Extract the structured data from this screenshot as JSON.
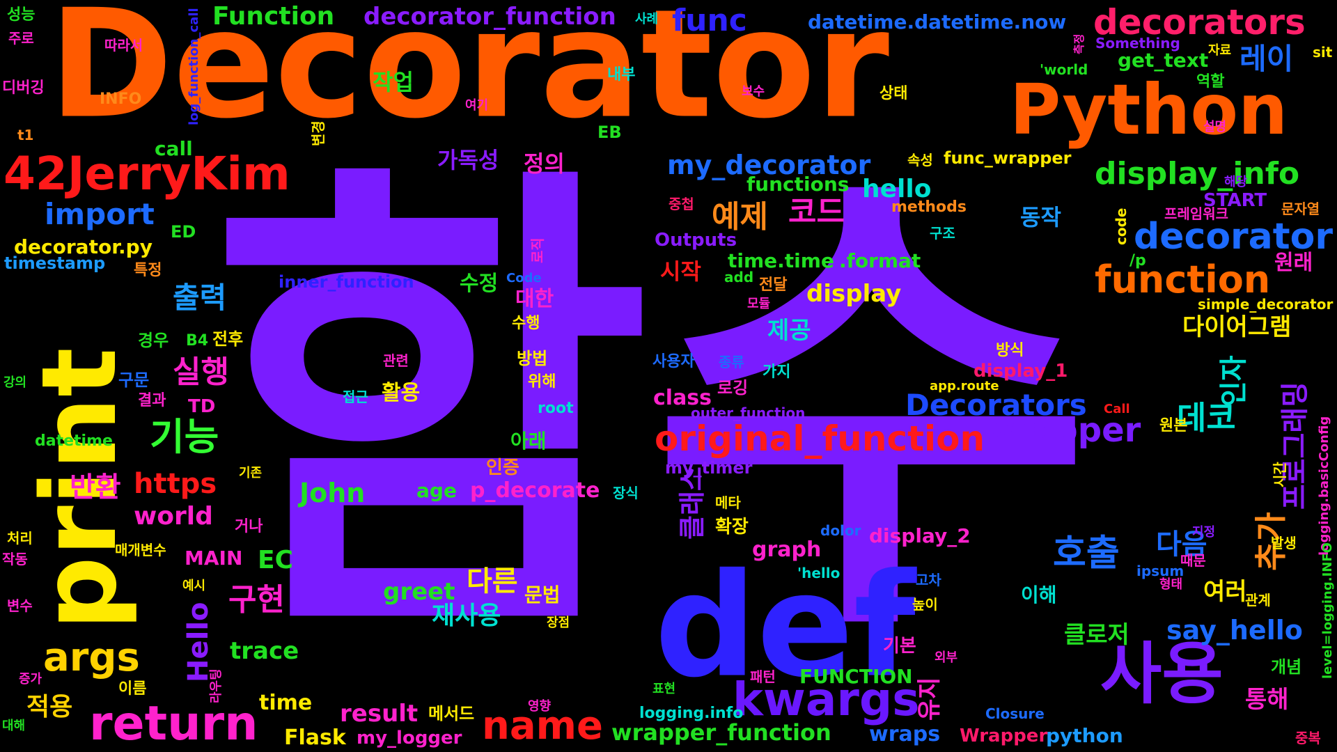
{
  "word_cloud": {
    "words": [
      {
        "text": "함수",
        "color": "#7a1cff"
      },
      {
        "text": "Decorator",
        "color": "#ff5a00"
      },
      {
        "text": "print",
        "color": "#ffea00"
      },
      {
        "text": "Python",
        "color": "#ff5a00"
      },
      {
        "text": "def",
        "color": "#2f22ff"
      },
      {
        "text": "42JerryKim",
        "color": "#ff1a1a"
      },
      {
        "text": "decorators",
        "color": "#ff1f6a"
      },
      {
        "text": "사용",
        "color": "#7a1cff"
      },
      {
        "text": "kwargs",
        "color": "#6a18ff"
      },
      {
        "text": "return",
        "color": "#ff22cc"
      },
      {
        "text": "name",
        "color": "#ff1a1a"
      },
      {
        "text": "args",
        "color": "#ffd200"
      },
      {
        "text": "original_function",
        "color": "#ff1a1a"
      },
      {
        "text": "decorator",
        "color": "#1d6bff"
      },
      {
        "text": "function",
        "color": "#ff6a00"
      },
      {
        "text": "display_info",
        "color": "#22e022"
      },
      {
        "text": "my_decorator",
        "color": "#1d6bff"
      },
      {
        "text": "wrapper",
        "color": "#7a1cff"
      },
      {
        "text": "Decorators",
        "color": "#1d4bff"
      },
      {
        "text": "코드",
        "color": "#ff22cc"
      },
      {
        "text": "예제",
        "color": "#ff8a1a"
      },
      {
        "text": "호출",
        "color": "#1d6bff"
      },
      {
        "text": "기능",
        "color": "#33ff33"
      },
      {
        "text": "실행",
        "color": "#ff22cc"
      },
      {
        "text": "출력",
        "color": "#1d9bff"
      },
      {
        "text": "func",
        "color": "#2f22ff"
      },
      {
        "text": "import",
        "color": "#1d6bff"
      },
      {
        "text": "Function",
        "color": "#22e022"
      },
      {
        "text": "decorator_function",
        "color": "#8a1cff"
      },
      {
        "text": "레이",
        "color": "#1d6bff"
      },
      {
        "text": "datetime.datetime.now",
        "color": "#1d6bff"
      },
      {
        "text": "데코",
        "color": "#00e0d0"
      },
      {
        "text": "추가",
        "color": "#ff8a1a"
      },
      {
        "text": "다음",
        "color": "#1d6bff"
      },
      {
        "text": "say_hello",
        "color": "#1d6bff"
      },
      {
        "text": "John",
        "color": "#22e022"
      },
      {
        "text": "https",
        "color": "#ff1a1a"
      },
      {
        "text": "hello",
        "color": "#00e0d0"
      },
      {
        "text": "world",
        "color": "#ff22cc"
      },
      {
        "text": "decorator.py",
        "color": "#ffea00"
      },
      {
        "text": "구현",
        "color": "#ff22cc"
      },
      {
        "text": "반환",
        "color": "#ff22cc"
      },
      {
        "text": "적용",
        "color": "#ffd200"
      },
      {
        "text": "greet",
        "color": "#22e022"
      },
      {
        "text": "재사용",
        "color": "#00e0d0"
      },
      {
        "text": "다른",
        "color": "#ffea00"
      },
      {
        "text": "wrapper_function",
        "color": "#22e022"
      },
      {
        "text": "result",
        "color": "#ff22cc"
      },
      {
        "text": "trace",
        "color": "#22e022"
      },
      {
        "text": "Flask",
        "color": "#ffea00"
      },
      {
        "text": "wraps",
        "color": "#1d6bff"
      },
      {
        "text": "python",
        "color": "#1d9bff"
      },
      {
        "text": "Wrapper",
        "color": "#ff1a6a"
      },
      {
        "text": "EC",
        "color": "#22e022"
      },
      {
        "text": "time",
        "color": "#ffea00"
      },
      {
        "text": "display",
        "color": "#ffea00"
      },
      {
        "text": "다이어그램",
        "color": "#ffea00"
      },
      {
        "text": "클로저",
        "color": "#22e022"
      },
      {
        "text": "여러",
        "color": "#ffea00"
      },
      {
        "text": "인자",
        "color": "#00e0d0"
      },
      {
        "text": "프로그래밍",
        "color": "#8a1cff"
      },
      {
        "text": "클래스",
        "color": "#8a1cff"
      },
      {
        "text": "유지",
        "color": "#ff22cc"
      },
      {
        "text": "Hello",
        "color": "#8a1cff"
      },
      {
        "text": "통해",
        "color": "#ff22cc"
      },
      {
        "text": "원래",
        "color": "#ff22cc"
      },
      {
        "text": "동작",
        "color": "#1d9bff"
      },
      {
        "text": "시작",
        "color": "#ff1a1a"
      },
      {
        "text": "수정",
        "color": "#22e022"
      },
      {
        "text": "대한",
        "color": "#ff22cc"
      },
      {
        "text": "제공",
        "color": "#00e0d0"
      },
      {
        "text": "정의",
        "color": "#ff22cc"
      },
      {
        "text": "가독성",
        "color": "#8a1cff"
      },
      {
        "text": "작업",
        "color": "#22e022"
      },
      {
        "text": "get_text",
        "color": "#22e022"
      },
      {
        "text": "functions",
        "color": "#22e022"
      },
      {
        "text": "time.time",
        "color": "#22e022"
      },
      {
        "text": ".format",
        "color": "#22e022"
      },
      {
        "text": "p_decorate",
        "color": "#ff22cc"
      },
      {
        "text": "age",
        "color": "#22e022"
      },
      {
        "text": "class",
        "color": "#ff22cc"
      },
      {
        "text": "graph",
        "color": "#ff22cc"
      },
      {
        "text": "display_2",
        "color": "#ff22cc"
      },
      {
        "text": "FUNCTION",
        "color": "#22e022"
      },
      {
        "text": "MAIN",
        "color": "#ff22cc"
      },
      {
        "text": "call",
        "color": "#22e022"
      },
      {
        "text": "START",
        "color": "#8a1cff"
      },
      {
        "text": "display_1",
        "color": "#ff1a6a"
      },
      {
        "text": "Outputs",
        "color": "#8a1cff"
      },
      {
        "text": "inner_function",
        "color": "#2f22ff"
      },
      {
        "text": "timestamp",
        "color": "#1d9bff"
      },
      {
        "text": "datetime",
        "color": "#22e022"
      },
      {
        "text": "outer_function",
        "color": "#8a1cff"
      },
      {
        "text": "my_timer",
        "color": "#8a1cff"
      },
      {
        "text": "my_logger",
        "color": "#ff22cc"
      },
      {
        "text": "logging.info",
        "color": "#00e0d0"
      },
      {
        "text": "logging.basicConfig",
        "color": "#ff22cc"
      },
      {
        "text": "level=logging.INFO",
        "color": "#22e022"
      },
      {
        "text": "log_function_call",
        "color": "#2f22ff"
      },
      {
        "text": "simple_decorator",
        "color": "#ffea00"
      },
      {
        "text": "func_wrapper",
        "color": "#ffea00"
      },
      {
        "text": "methods",
        "color": "#ff8a1a"
      },
      {
        "text": "app.route",
        "color": "#ffea00"
      },
      {
        "text": "Closure",
        "color": "#1d6bff"
      },
      {
        "text": "Something",
        "color": "#8a1cff"
      },
      {
        "text": "'world",
        "color": "#22e022"
      },
      {
        "text": "'hello",
        "color": "#00e0d0"
      },
      {
        "text": "dolor",
        "color": "#1d6bff"
      },
      {
        "text": "ipsum",
        "color": "#1d6bff"
      },
      {
        "text": "Call",
        "color": "#ff1a1a"
      },
      {
        "text": "Code",
        "color": "#1d6bff"
      },
      {
        "text": "code",
        "color": "#ffea00"
      },
      {
        "text": "add",
        "color": "#22e022"
      },
      {
        "text": "/p",
        "color": "#22e022"
      },
      {
        "text": "sit",
        "color": "#ffea00"
      },
      {
        "text": "root",
        "color": "#00e0d0"
      },
      {
        "text": "INFO",
        "color": "#ff8a1a"
      },
      {
        "text": "ED",
        "color": "#22e022"
      },
      {
        "text": "EB",
        "color": "#22e022"
      },
      {
        "text": "TD",
        "color": "#ff22cc"
      },
      {
        "text": "B4",
        "color": "#22e022"
      },
      {
        "text": "t1",
        "color": "#ff8a1a"
      },
      {
        "text": "성능",
        "color": "#22e022"
      },
      {
        "text": "주로",
        "color": "#ff22cc"
      },
      {
        "text": "따라서",
        "color": "#ff22cc"
      },
      {
        "text": "디버깅",
        "color": "#ff22cc"
      },
      {
        "text": "여기",
        "color": "#ff22cc"
      },
      {
        "text": "내부",
        "color": "#00e0d0"
      },
      {
        "text": "사례",
        "color": "#00e0d0"
      },
      {
        "text": "보수",
        "color": "#ff22cc"
      },
      {
        "text": "상태",
        "color": "#ffea00"
      },
      {
        "text": "속성",
        "color": "#ffea00"
      },
      {
        "text": "구조",
        "color": "#00e0d0"
      },
      {
        "text": "자료",
        "color": "#ffea00"
      },
      {
        "text": "역할",
        "color": "#22e022"
      },
      {
        "text": "설명",
        "color": "#ff22cc"
      },
      {
        "text": "해당",
        "color": "#8a1cff"
      },
      {
        "text": "문자열",
        "color": "#ff8a1a"
      },
      {
        "text": "프레임워크",
        "color": "#ff22cc"
      },
      {
        "text": "중첩",
        "color": "#ff1a6a"
      },
      {
        "text": "모듈",
        "color": "#ff22cc"
      },
      {
        "text": "전달",
        "color": "#ff8a1a"
      },
      {
        "text": "방식",
        "color": "#ffea00"
      },
      {
        "text": "종류",
        "color": "#1d6bff"
      },
      {
        "text": "가지",
        "color": "#00e0d0"
      },
      {
        "text": "사용자",
        "color": "#1d6bff"
      },
      {
        "text": "로깅",
        "color": "#ff22cc"
      },
      {
        "text": "관련",
        "color": "#ff22cc"
      },
      {
        "text": "활용",
        "color": "#ffea00"
      },
      {
        "text": "접근",
        "color": "#00e0d0"
      },
      {
        "text": "방법",
        "color": "#ffea00"
      },
      {
        "text": "위해",
        "color": "#ffea00"
      },
      {
        "text": "수행",
        "color": "#ffea00"
      },
      {
        "text": "아래",
        "color": "#22e022"
      },
      {
        "text": "인증",
        "color": "#ff8a1a"
      },
      {
        "text": "장식",
        "color": "#00e0d0"
      },
      {
        "text": "메타",
        "color": "#ffea00"
      },
      {
        "text": "확장",
        "color": "#ffea00"
      },
      {
        "text": "문법",
        "color": "#ffea00"
      },
      {
        "text": "장점",
        "color": "#ffea00"
      },
      {
        "text": "기본",
        "color": "#ff22cc"
      },
      {
        "text": "외부",
        "color": "#ff22cc"
      },
      {
        "text": "패턴",
        "color": "#ff22cc"
      },
      {
        "text": "표현",
        "color": "#22e022"
      },
      {
        "text": "메서드",
        "color": "#ffea00"
      },
      {
        "text": "영향",
        "color": "#ff22cc"
      },
      {
        "text": "고차",
        "color": "#1d6bff"
      },
      {
        "text": "높이",
        "color": "#ffea00"
      },
      {
        "text": "이해",
        "color": "#00e0d0"
      },
      {
        "text": "관계",
        "color": "#ffea00"
      },
      {
        "text": "개념",
        "color": "#22e022"
      },
      {
        "text": "지정",
        "color": "#8a1cff"
      },
      {
        "text": "때문",
        "color": "#ff22cc"
      },
      {
        "text": "형태",
        "color": "#ff22cc"
      },
      {
        "text": "발생",
        "color": "#ffea00"
      },
      {
        "text": "중복",
        "color": "#ff1a6a"
      },
      {
        "text": "원본",
        "color": "#ffea00"
      },
      {
        "text": "시간",
        "color": "#ffea00"
      },
      {
        "text": "특정",
        "color": "#ff8a1a"
      },
      {
        "text": "경우",
        "color": "#22e022"
      },
      {
        "text": "전후",
        "color": "#ffea00"
      },
      {
        "text": "구문",
        "color": "#1d6bff"
      },
      {
        "text": "결과",
        "color": "#ff22cc"
      },
      {
        "text": "기존",
        "color": "#ffea00"
      },
      {
        "text": "거나",
        "color": "#ff22cc"
      },
      {
        "text": "매개변수",
        "color": "#ffea00"
      },
      {
        "text": "예시",
        "color": "#ffea00"
      },
      {
        "text": "처리",
        "color": "#ffea00"
      },
      {
        "text": "작동",
        "color": "#ff22cc"
      },
      {
        "text": "변수",
        "color": "#ff22cc"
      },
      {
        "text": "이름",
        "color": "#ffea00"
      },
      {
        "text": "증가",
        "color": "#ff22cc"
      },
      {
        "text": "대해",
        "color": "#22e022"
      },
      {
        "text": "강의",
        "color": "#22e022"
      },
      {
        "text": "라우팅",
        "color": "#ff22cc"
      },
      {
        "text": "로직",
        "color": "#ff22cc"
      },
      {
        "text": "변경",
        "color": "#ffea00"
      },
      {
        "text": "측정",
        "color": "#ff22cc"
      }
    ]
  }
}
